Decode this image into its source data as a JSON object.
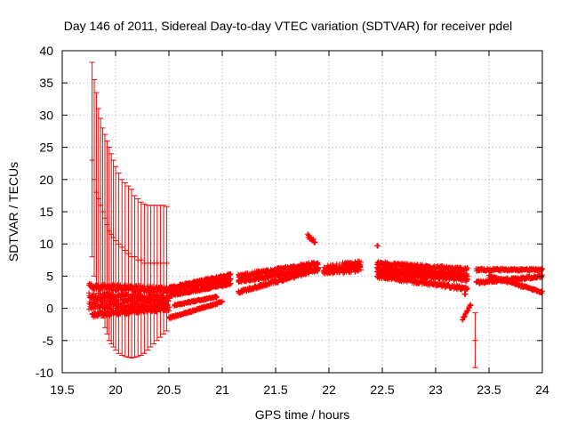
{
  "chart_data": {
    "type": "scatter",
    "title": "Day 146 of 2011, Sidereal Day-to-day VTEC variation (SDTVAR) for receiver pdel",
    "xlabel": "GPS time / hours",
    "ylabel": "SDTVAR / TECUs",
    "xlim": [
      19.5,
      24
    ],
    "ylim": [
      -10,
      40
    ],
    "xticks": [
      19.5,
      20,
      20.5,
      21,
      21.5,
      22,
      22.5,
      23,
      23.5,
      24
    ],
    "yticks": [
      -10,
      -5,
      0,
      5,
      10,
      15,
      20,
      25,
      30,
      35,
      40
    ],
    "grid": true,
    "series_color": "#ff0000",
    "marker": "+",
    "error_bars": [
      {
        "x": 19.78,
        "y": 23.0,
        "lo": 8.0,
        "hi": 38.2
      },
      {
        "x": 19.8,
        "y": 20.0,
        "lo": 5.0,
        "hi": 35.5
      },
      {
        "x": 19.82,
        "y": 18.0,
        "lo": 3.5,
        "hi": 33.5
      },
      {
        "x": 19.84,
        "y": 17.0,
        "lo": 1.5,
        "hi": 31.0
      },
      {
        "x": 19.86,
        "y": 16.0,
        "lo": 0.0,
        "hi": 29.5
      },
      {
        "x": 19.88,
        "y": 15.0,
        "lo": -1.5,
        "hi": 28.0
      },
      {
        "x": 19.9,
        "y": 14.0,
        "lo": -3.0,
        "hi": 27.0
      },
      {
        "x": 19.92,
        "y": 13.0,
        "lo": -4.0,
        "hi": 26.0
      },
      {
        "x": 19.94,
        "y": 12.0,
        "lo": -5.0,
        "hi": 25.0
      },
      {
        "x": 19.96,
        "y": 11.5,
        "lo": -5.5,
        "hi": 24.0
      },
      {
        "x": 19.98,
        "y": 11.0,
        "lo": -6.0,
        "hi": 23.0
      },
      {
        "x": 20.0,
        "y": 10.5,
        "lo": -6.5,
        "hi": 22.0
      },
      {
        "x": 20.03,
        "y": 10.0,
        "lo": -7.0,
        "hi": 21.0
      },
      {
        "x": 20.06,
        "y": 9.5,
        "lo": -7.3,
        "hi": 20.0
      },
      {
        "x": 20.09,
        "y": 9.0,
        "lo": -7.5,
        "hi": 19.5
      },
      {
        "x": 20.12,
        "y": 8.5,
        "lo": -7.6,
        "hi": 19.0
      },
      {
        "x": 20.15,
        "y": 8.0,
        "lo": -7.7,
        "hi": 18.5
      },
      {
        "x": 20.18,
        "y": 8.0,
        "lo": -7.6,
        "hi": 17.5
      },
      {
        "x": 20.21,
        "y": 7.5,
        "lo": -7.5,
        "hi": 17.0
      },
      {
        "x": 20.24,
        "y": 7.5,
        "lo": -7.3,
        "hi": 16.5
      },
      {
        "x": 20.27,
        "y": 7.0,
        "lo": -7.0,
        "hi": 16.2
      },
      {
        "x": 20.3,
        "y": 7.0,
        "lo": -6.5,
        "hi": 16.0
      },
      {
        "x": 20.33,
        "y": 7.0,
        "lo": -6.0,
        "hi": 16.0
      },
      {
        "x": 20.36,
        "y": 7.0,
        "lo": -5.5,
        "hi": 16.0
      },
      {
        "x": 20.39,
        "y": 7.0,
        "lo": -5.0,
        "hi": 16.0
      },
      {
        "x": 20.42,
        "y": 7.0,
        "lo": -4.5,
        "hi": 16.0
      },
      {
        "x": 20.45,
        "y": 7.0,
        "lo": -4.0,
        "hi": 16.0
      },
      {
        "x": 20.48,
        "y": 7.0,
        "lo": -3.5,
        "hi": 15.8
      },
      {
        "x": 23.37,
        "y": -5.0,
        "lo": -9.2,
        "hi": -0.7
      }
    ],
    "segments": [
      {
        "x0": 19.75,
        "x1": 20.5,
        "y0": 0.5,
        "y1": 0.8,
        "noise": 1.4
      },
      {
        "x0": 19.75,
        "x1": 20.5,
        "y0": 3.5,
        "y1": 2.8,
        "noise": 1.0
      },
      {
        "x0": 19.75,
        "x1": 20.5,
        "y0": 1.8,
        "y1": 1.5,
        "noise": 1.2
      },
      {
        "x0": 19.78,
        "x1": 20.5,
        "y0": -1.0,
        "y1": 0.0,
        "noise": 0.8
      },
      {
        "x0": 20.5,
        "x1": 21.08,
        "y0": 2.8,
        "y1": 4.5,
        "noise": 0.5
      },
      {
        "x0": 20.5,
        "x1": 21.08,
        "y0": 2.0,
        "y1": 3.8,
        "noise": 0.4
      },
      {
        "x0": 20.5,
        "x1": 21.08,
        "y0": 3.2,
        "y1": 5.2,
        "noise": 0.4
      },
      {
        "x0": 20.5,
        "x1": 21.0,
        "y0": -1.5,
        "y1": 1.0,
        "noise": 0.3
      },
      {
        "x0": 20.55,
        "x1": 20.95,
        "y0": 0.5,
        "y1": 1.8,
        "noise": 0.3
      },
      {
        "x0": 21.15,
        "x1": 21.9,
        "y0": 5.0,
        "y1": 7.0,
        "noise": 0.6
      },
      {
        "x0": 21.15,
        "x1": 21.9,
        "y0": 2.5,
        "y1": 6.0,
        "noise": 0.5
      },
      {
        "x0": 21.15,
        "x1": 21.9,
        "y0": 4.2,
        "y1": 6.2,
        "noise": 0.5
      },
      {
        "x0": 21.8,
        "x1": 21.87,
        "y0": 11.3,
        "y1": 10.3,
        "noise": 0.5
      },
      {
        "x0": 21.95,
        "x1": 22.3,
        "y0": 6.0,
        "y1": 7.0,
        "noise": 1.2
      },
      {
        "x0": 21.95,
        "x1": 22.3,
        "y0": 5.8,
        "y1": 6.2,
        "noise": 1.0
      },
      {
        "x0": 22.45,
        "x1": 22.46,
        "y0": 9.7,
        "y1": 9.7,
        "noise": 0.0
      },
      {
        "x0": 22.45,
        "x1": 23.3,
        "y0": 7.0,
        "y1": 6.0,
        "noise": 0.6
      },
      {
        "x0": 22.45,
        "x1": 23.3,
        "y0": 5.5,
        "y1": 4.5,
        "noise": 0.6
      },
      {
        "x0": 22.45,
        "x1": 23.3,
        "y0": 5.0,
        "y1": 3.0,
        "noise": 0.6
      },
      {
        "x0": 22.45,
        "x1": 23.3,
        "y0": 6.2,
        "y1": 5.2,
        "noise": 0.5
      },
      {
        "x0": 23.25,
        "x1": 23.33,
        "y0": -1.8,
        "y1": 0.5,
        "noise": 0.4
      },
      {
        "x0": 23.27,
        "x1": 23.28,
        "y0": 2.2,
        "y1": 2.2,
        "noise": 0.0
      },
      {
        "x0": 23.38,
        "x1": 24.0,
        "y0": 6.0,
        "y1": 6.0,
        "noise": 0.4
      },
      {
        "x0": 23.38,
        "x1": 24.0,
        "y0": 4.0,
        "y1": 5.0,
        "noise": 0.5
      },
      {
        "x0": 23.5,
        "x1": 24.0,
        "y0": 5.0,
        "y1": 2.5,
        "noise": 0.4
      }
    ]
  }
}
